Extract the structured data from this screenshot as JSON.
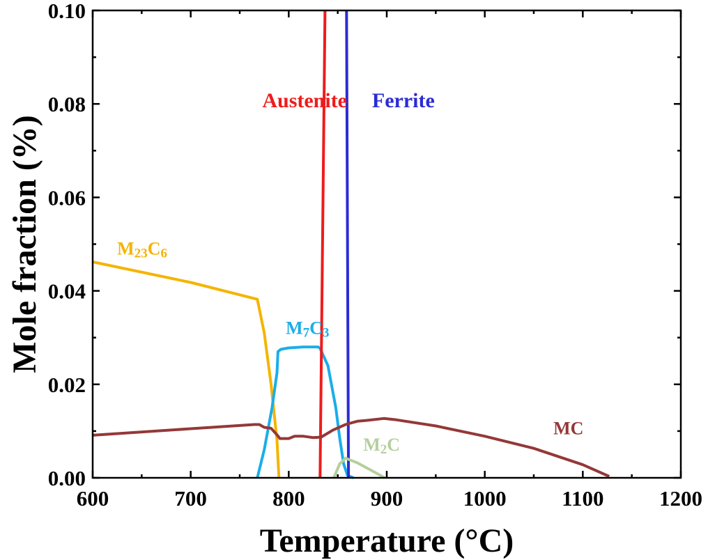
{
  "chart_data": {
    "type": "line",
    "title": "",
    "xlabel": "Temperature (°C)",
    "ylabel": "Mole fraction (%)",
    "xlim": [
      600,
      1200
    ],
    "ylim": [
      0,
      0.1
    ],
    "x_ticks": [
      600,
      700,
      800,
      900,
      1000,
      1100,
      1200
    ],
    "x_tick_labels": [
      "600",
      "700",
      "800",
      "900",
      "1000",
      "1100",
      "1200"
    ],
    "y_ticks": [
      0,
      0.02,
      0.04,
      0.06,
      0.08,
      0.1
    ],
    "y_tick_labels": [
      "0.00",
      "0.02",
      "0.04",
      "0.06",
      "0.08",
      "0.10"
    ],
    "grid": false,
    "legend": "none",
    "series": [
      {
        "name": "M23C6",
        "label": {
          "base": "M",
          "sub1": "23",
          "mid": "C",
          "sub2": "6"
        },
        "color": "#f5b400",
        "points": [
          [
            600,
            0.0462
          ],
          [
            700,
            0.0418
          ],
          [
            768,
            0.0382
          ],
          [
            775,
            0.031
          ],
          [
            782,
            0.02
          ],
          [
            788,
            0.008
          ],
          [
            790,
            0.0
          ]
        ]
      },
      {
        "name": "M7C3",
        "label": {
          "base": "M",
          "sub1": "7",
          "mid": "C",
          "sub2": "3"
        },
        "color": "#1aaee8",
        "points": [
          [
            768,
            0.0
          ],
          [
            775,
            0.006
          ],
          [
            783,
            0.015
          ],
          [
            788,
            0.0225
          ],
          [
            789,
            0.027
          ],
          [
            792,
            0.0275
          ],
          [
            800,
            0.0278
          ],
          [
            815,
            0.028
          ],
          [
            830,
            0.028
          ],
          [
            832,
            0.0277
          ],
          [
            840,
            0.024
          ],
          [
            848,
            0.015
          ],
          [
            852,
            0.0085
          ],
          [
            856,
            0.003
          ],
          [
            860,
            0.0005
          ],
          [
            866,
            0.0
          ]
        ]
      },
      {
        "name": "Austenite",
        "label": {
          "base": "Austenite"
        },
        "color": "#ee1c1c",
        "points": [
          [
            832,
            0.0
          ],
          [
            837,
            0.1
          ]
        ]
      },
      {
        "name": "Ferrite",
        "label": {
          "base": "Ferrite"
        },
        "color": "#2b2bd6",
        "points": [
          [
            859,
            0.1
          ],
          [
            861,
            0.0
          ]
        ]
      },
      {
        "name": "M2C",
        "label": {
          "base": "M",
          "sub1": "2",
          "mid": "C",
          "sub2": ""
        },
        "color": "#b5cf9c",
        "points": [
          [
            846,
            0.0
          ],
          [
            852,
            0.003
          ],
          [
            858,
            0.0042
          ],
          [
            870,
            0.0032
          ],
          [
            885,
            0.0015
          ],
          [
            898,
            0.0
          ]
        ]
      },
      {
        "name": "MC",
        "label": {
          "base": "MC"
        },
        "color": "#943838",
        "points": [
          [
            600,
            0.0091
          ],
          [
            700,
            0.0105
          ],
          [
            765,
            0.0114
          ],
          [
            770,
            0.0114
          ],
          [
            775,
            0.0108
          ],
          [
            782,
            0.0106
          ],
          [
            788,
            0.0092
          ],
          [
            791,
            0.0084
          ],
          [
            800,
            0.0084
          ],
          [
            806,
            0.0089
          ],
          [
            815,
            0.0089
          ],
          [
            825,
            0.0086
          ],
          [
            833,
            0.0087
          ],
          [
            845,
            0.0102
          ],
          [
            858,
            0.0114
          ],
          [
            870,
            0.0121
          ],
          [
            880,
            0.0123
          ],
          [
            897,
            0.0127
          ],
          [
            910,
            0.0124
          ],
          [
            950,
            0.0111
          ],
          [
            1000,
            0.0089
          ],
          [
            1050,
            0.0063
          ],
          [
            1100,
            0.0028
          ],
          [
            1127,
            0.0003
          ]
        ]
      }
    ],
    "annotations": [
      {
        "series": "M23C6",
        "x": 625,
        "y": 0.0478,
        "size": 26
      },
      {
        "series": "M7C3",
        "x": 797,
        "y": 0.0308,
        "size": 26
      },
      {
        "series": "Austenite",
        "x": 773,
        "y": 0.0793,
        "size": 30
      },
      {
        "series": "Ferrite",
        "x": 885,
        "y": 0.0793,
        "size": 30
      },
      {
        "series": "M2C",
        "x": 876,
        "y": 0.0058,
        "size": 26
      },
      {
        "series": "MC",
        "x": 1070,
        "y": 0.0093,
        "size": 26
      }
    ]
  }
}
